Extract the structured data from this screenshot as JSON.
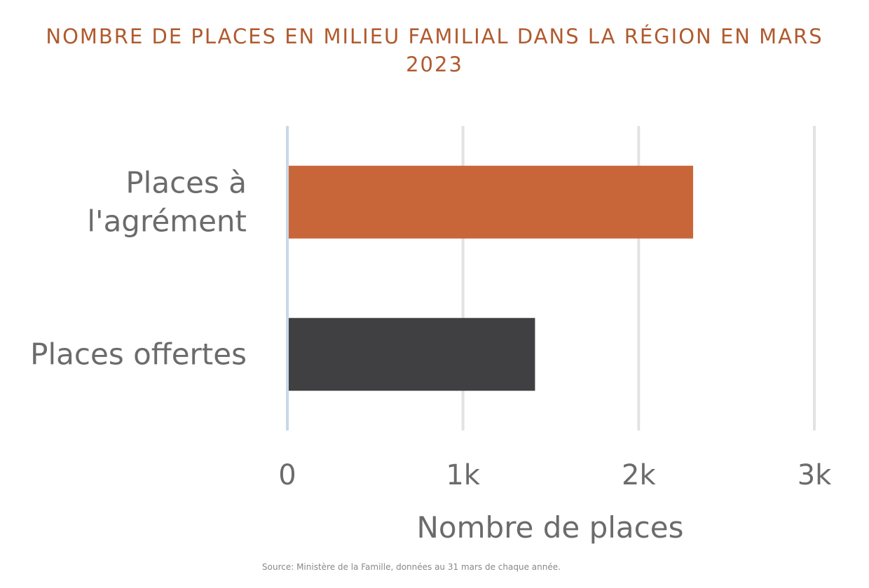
{
  "chart_data": {
    "type": "bar",
    "orientation": "horizontal",
    "title": "NOMBRE DE PLACES EN MILIEU FAMILIAL DANS LA RÉGION EN MARS 2023",
    "categories": [
      "Places à l'agrément",
      "Places offertes"
    ],
    "category_lines": [
      [
        "Places à",
        "l'agrément"
      ],
      [
        "Places offertes"
      ]
    ],
    "values": [
      2310,
      1410
    ],
    "bar_colors": [
      "#c8663a",
      "#404042"
    ],
    "xlabel": "Nombre de places",
    "ylabel": "",
    "xlim": [
      0,
      3000
    ],
    "x_ticks": [
      0,
      1000,
      2000,
      3000
    ],
    "x_tick_labels": [
      "0",
      "1k",
      "2k",
      "3k"
    ],
    "grid": true,
    "legend": "none",
    "source": "Source: Ministère de la Famille, données au 31 mars de chaque année."
  },
  "colors": {
    "title": "#b05a2e",
    "grid": "#e2e2e2",
    "baseline": "#c9d7e8",
    "text": "#6b6b6b"
  }
}
